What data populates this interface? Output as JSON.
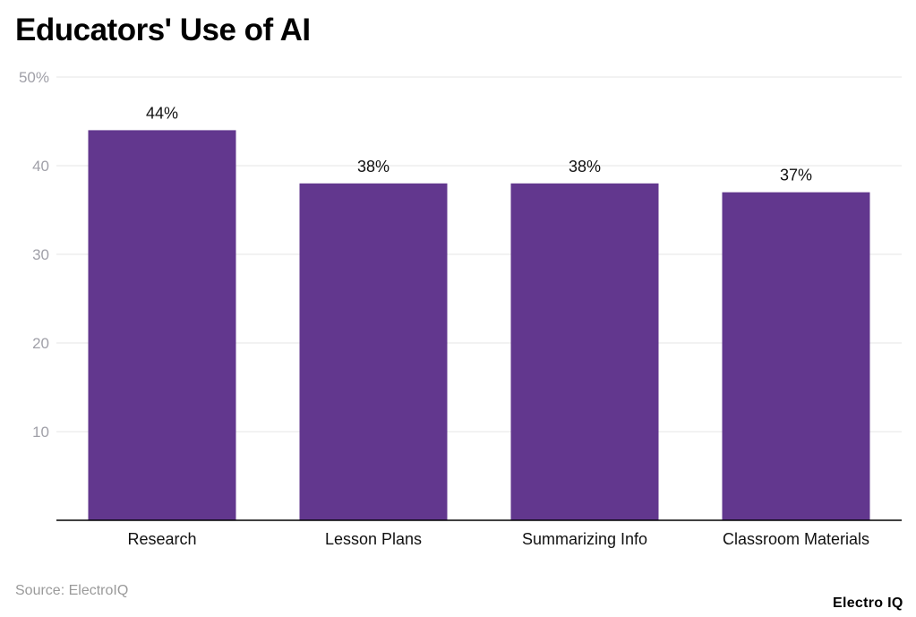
{
  "header": {
    "title": "Educators' Use of AI"
  },
  "chart_data": {
    "type": "bar",
    "title": "Educators' Use of AI",
    "categories": [
      "Research",
      "Lesson Plans",
      "Summarizing Info",
      "Classroom Materials"
    ],
    "values": [
      44,
      38,
      38,
      37
    ],
    "data_labels": [
      "44%",
      "38%",
      "38%",
      "37%"
    ],
    "y_ticks": [
      10,
      20,
      30,
      40,
      50
    ],
    "y_tick_labels": [
      "10",
      "20",
      "30",
      "40",
      "50%"
    ],
    "ylim": [
      0,
      50
    ],
    "xlabel": "",
    "ylabel": "",
    "grid": true,
    "legend": "none",
    "bar_color": "#62378e",
    "grid_color": "#e6e6e6",
    "axis_color": "#000000"
  },
  "footer": {
    "source": "Source: ElectroIQ",
    "brand": "Electro IQ"
  }
}
